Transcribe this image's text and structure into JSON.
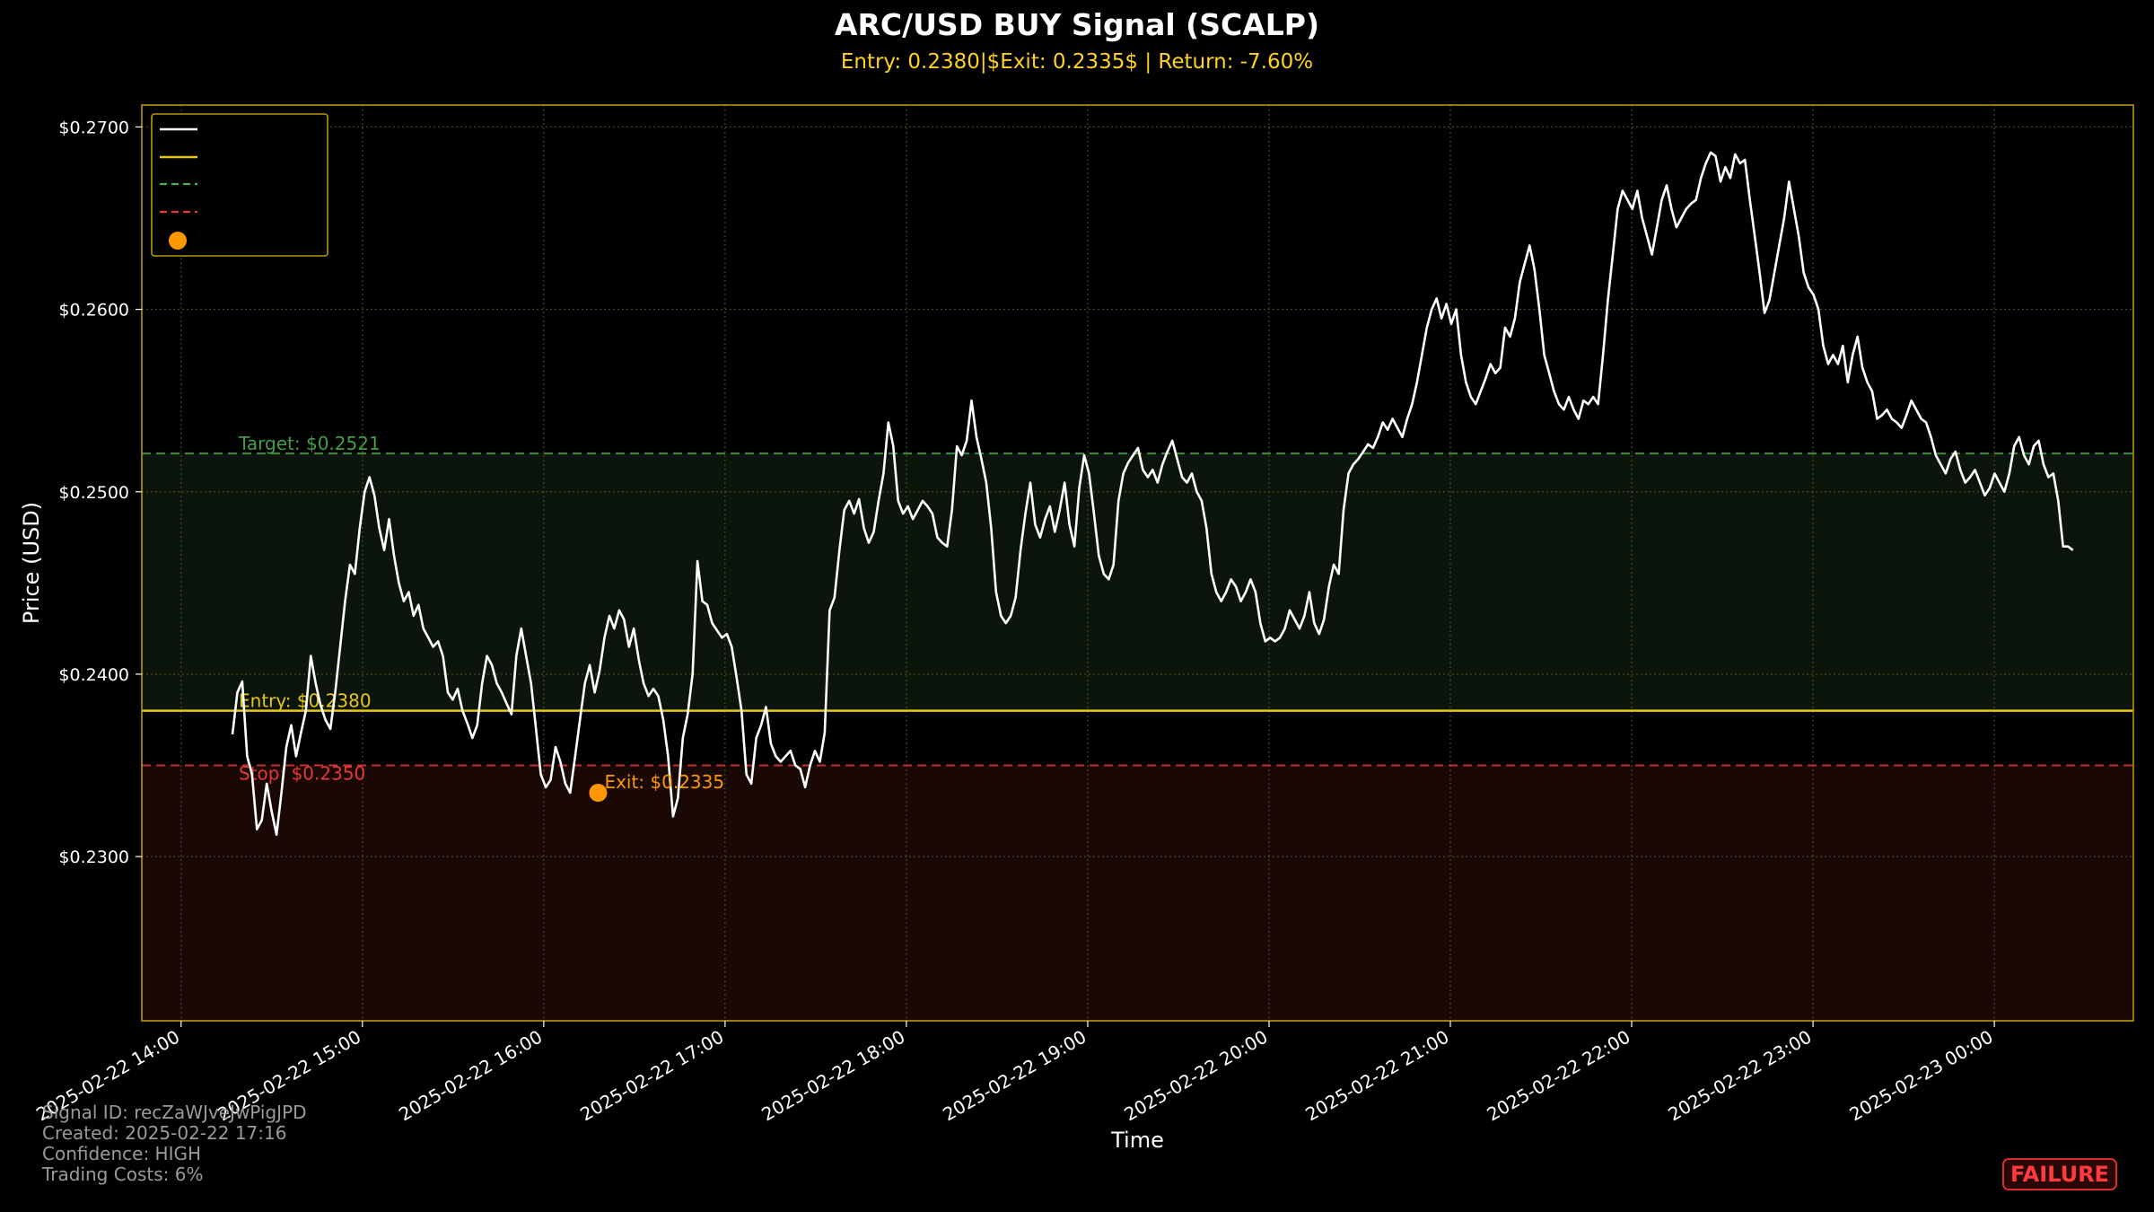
{
  "chart_data": {
    "type": "line",
    "title": "ARC/USD BUY Signal (SCALP)",
    "subtitle": "Entry: 0.2380|$Exit: 0.2335$ | Return: -7.60%",
    "xlabel": "Time",
    "ylabel": "Price (USD)",
    "x_ticks": [
      "2025-02-22 14:00",
      "2025-02-22 15:00",
      "2025-02-22 16:00",
      "2025-02-22 17:00",
      "2025-02-22 18:00",
      "2025-02-22 19:00",
      "2025-02-22 20:00",
      "2025-02-22 21:00",
      "2025-02-22 22:00",
      "2025-02-22 23:00",
      "2025-02-23 00:00"
    ],
    "y_ticks": [
      "$0.2300",
      "$0.2400",
      "$0.2500",
      "$0.2600",
      "$0.2700"
    ],
    "y_tick_values": [
      0.23,
      0.24,
      0.25,
      0.26,
      0.27
    ],
    "ylim": [
      0.221,
      0.2712
    ],
    "xlim_hours": [
      "2025-02-22 13:47",
      "2025-02-23 00:46"
    ],
    "grid": true,
    "legend_position": "top-left",
    "levels": {
      "entry": {
        "value": 0.238,
        "label": "Entry: $0.2380",
        "color": "#e6c619"
      },
      "target": {
        "value": 0.2521,
        "label": "Target: $0.2521",
        "color": "#4caf50"
      },
      "stop": {
        "value": 0.235,
        "label": "Stop: $0.2350",
        "color": "#e53935"
      }
    },
    "exit_point": {
      "time": "2025-02-22 16:18",
      "value": 0.2335,
      "label": "Exit: $0.2335",
      "color": "#ff9800"
    },
    "series": [
      {
        "color": "#ffffff",
        "x_start": "2025-02-22 14:17",
        "x_end": "2025-02-23 00:26",
        "values": [
          0.2367,
          0.239,
          0.2396,
          0.2355,
          0.2345,
          0.2315,
          0.232,
          0.234,
          0.2325,
          0.2312,
          0.2335,
          0.236,
          0.2372,
          0.2355,
          0.2368,
          0.238,
          0.241,
          0.2395,
          0.2383,
          0.2375,
          0.237,
          0.239,
          0.2415,
          0.244,
          0.246,
          0.2455,
          0.248,
          0.25,
          0.2508,
          0.2498,
          0.248,
          0.2468,
          0.2485,
          0.2465,
          0.245,
          0.244,
          0.2445,
          0.2432,
          0.2438,
          0.2425,
          0.242,
          0.2415,
          0.2418,
          0.241,
          0.239,
          0.2386,
          0.2392,
          0.238,
          0.2373,
          0.2365,
          0.2372,
          0.2395,
          0.241,
          0.2405,
          0.2395,
          0.239,
          0.2384,
          0.2378,
          0.241,
          0.2425,
          0.241,
          0.2395,
          0.237,
          0.2345,
          0.2338,
          0.2342,
          0.236,
          0.2352,
          0.234,
          0.2335,
          0.2355,
          0.2375,
          0.2395,
          0.2405,
          0.239,
          0.2402,
          0.242,
          0.2432,
          0.2425,
          0.2435,
          0.243,
          0.2415,
          0.2425,
          0.2408,
          0.2395,
          0.2388,
          0.2392,
          0.2388,
          0.2375,
          0.2355,
          0.2322,
          0.2332,
          0.2365,
          0.2378,
          0.24,
          0.2462,
          0.244,
          0.2438,
          0.2428,
          0.2424,
          0.242,
          0.2422,
          0.2415,
          0.2398,
          0.238,
          0.2345,
          0.234,
          0.2365,
          0.2372,
          0.2382,
          0.2362,
          0.2355,
          0.2352,
          0.2355,
          0.2358,
          0.235,
          0.2348,
          0.2338,
          0.235,
          0.2358,
          0.2352,
          0.2368,
          0.2435,
          0.2442,
          0.2468,
          0.249,
          0.2495,
          0.2488,
          0.2496,
          0.248,
          0.2472,
          0.2478,
          0.2495,
          0.251,
          0.2538,
          0.2525,
          0.2495,
          0.2488,
          0.2492,
          0.2485,
          0.249,
          0.2495,
          0.2492,
          0.2488,
          0.2475,
          0.2472,
          0.247,
          0.249,
          0.2525,
          0.252,
          0.2528,
          0.255,
          0.253,
          0.2518,
          0.2505,
          0.248,
          0.2445,
          0.2432,
          0.2428,
          0.2432,
          0.2442,
          0.2468,
          0.2488,
          0.2505,
          0.2482,
          0.2475,
          0.2485,
          0.2492,
          0.2478,
          0.249,
          0.2505,
          0.2482,
          0.247,
          0.2502,
          0.252,
          0.251,
          0.2488,
          0.2465,
          0.2455,
          0.2452,
          0.246,
          0.2495,
          0.251,
          0.2516,
          0.252,
          0.2524,
          0.2512,
          0.2508,
          0.2512,
          0.2505,
          0.2515,
          0.2522,
          0.2528,
          0.2518,
          0.2508,
          0.2505,
          0.251,
          0.25,
          0.2495,
          0.248,
          0.2455,
          0.2445,
          0.244,
          0.2445,
          0.2452,
          0.2448,
          0.244,
          0.2445,
          0.2452,
          0.2445,
          0.2428,
          0.2418,
          0.242,
          0.2418,
          0.242,
          0.2425,
          0.2435,
          0.243,
          0.2425,
          0.2432,
          0.2445,
          0.2428,
          0.2422,
          0.243,
          0.2448,
          0.246,
          0.2455,
          0.249,
          0.251,
          0.2515,
          0.2518,
          0.2522,
          0.2526,
          0.2524,
          0.253,
          0.2538,
          0.2534,
          0.254,
          0.2535,
          0.253,
          0.254,
          0.2548,
          0.256,
          0.2575,
          0.259,
          0.26,
          0.2606,
          0.2595,
          0.2603,
          0.2592,
          0.26,
          0.2575,
          0.256,
          0.2552,
          0.2548,
          0.2555,
          0.2562,
          0.257,
          0.2565,
          0.2568,
          0.259,
          0.2585,
          0.2595,
          0.2615,
          0.2625,
          0.2635,
          0.2622,
          0.26,
          0.2575,
          0.2565,
          0.2555,
          0.2548,
          0.2545,
          0.2552,
          0.2545,
          0.254,
          0.255,
          0.2548,
          0.2552,
          0.2548,
          0.2575,
          0.2605,
          0.263,
          0.2655,
          0.2665,
          0.266,
          0.2655,
          0.2665,
          0.265,
          0.264,
          0.263,
          0.2645,
          0.266,
          0.2668,
          0.2655,
          0.2645,
          0.265,
          0.2655,
          0.2658,
          0.266,
          0.2672,
          0.268,
          0.2686,
          0.2684,
          0.267,
          0.2678,
          0.2672,
          0.2685,
          0.268,
          0.2682,
          0.266,
          0.264,
          0.262,
          0.2598,
          0.2605,
          0.262,
          0.2635,
          0.265,
          0.267,
          0.2655,
          0.264,
          0.262,
          0.2612,
          0.2608,
          0.26,
          0.258,
          0.257,
          0.2575,
          0.257,
          0.258,
          0.256,
          0.2575,
          0.2585,
          0.2568,
          0.256,
          0.2555,
          0.254,
          0.2542,
          0.2545,
          0.254,
          0.2538,
          0.2535,
          0.2542,
          0.255,
          0.2545,
          0.254,
          0.2538,
          0.253,
          0.252,
          0.2515,
          0.251,
          0.2518,
          0.2522,
          0.2512,
          0.2505,
          0.2508,
          0.2512,
          0.2505,
          0.2498,
          0.2502,
          0.251,
          0.2505,
          0.25,
          0.251,
          0.2525,
          0.253,
          0.252,
          0.2515,
          0.2525,
          0.2528,
          0.2515,
          0.2508,
          0.251,
          0.2495,
          0.247,
          0.247,
          0.2468
        ]
      }
    ]
  },
  "footer": {
    "signal_id": "Signal ID: recZaWJveJwPigJPD",
    "created": "Created: 2025-02-22 17:16",
    "confidence": "Confidence: HIGH",
    "trading_costs": "Trading Costs: 6%"
  },
  "badge": {
    "text": "FAILURE",
    "color": "#ff3b3b"
  }
}
